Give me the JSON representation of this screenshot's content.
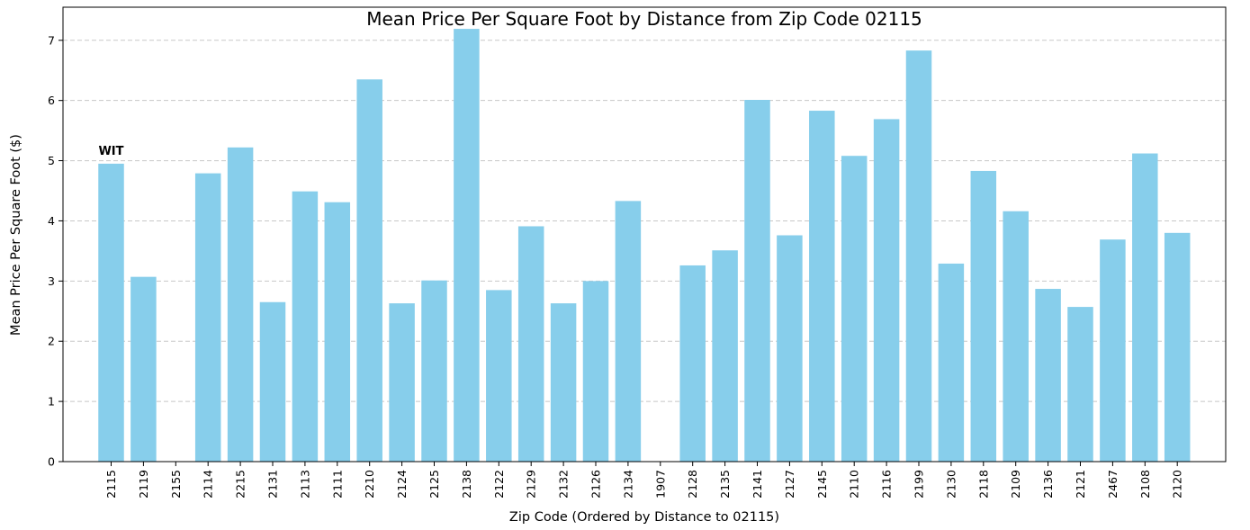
{
  "chart_data": {
    "type": "bar",
    "title": "Mean Price Per Square Foot by Distance from Zip Code 02115",
    "xlabel": "Zip Code (Ordered by Distance to 02115)",
    "ylabel": "Mean Price Per Square Foot ($)",
    "ylim": [
      0,
      7.55
    ],
    "yticks": [
      0,
      1,
      2,
      3,
      4,
      5,
      6,
      7
    ],
    "grid": "y-dashed",
    "bar_color": "#87CEEB",
    "categories": [
      "2115",
      "2119",
      "2155",
      "2114",
      "2215",
      "2131",
      "2113",
      "2111",
      "2210",
      "2124",
      "2125",
      "2138",
      "2122",
      "2129",
      "2132",
      "2126",
      "2134",
      "1907",
      "2128",
      "2135",
      "2141",
      "2127",
      "2145",
      "2110",
      "2116",
      "2199",
      "2130",
      "2118",
      "2109",
      "2136",
      "2121",
      "2467",
      "2108",
      "2120"
    ],
    "values": [
      4.95,
      3.07,
      0,
      4.79,
      5.22,
      2.65,
      4.49,
      4.31,
      6.35,
      2.63,
      3.01,
      7.19,
      2.85,
      3.91,
      2.63,
      3.0,
      4.33,
      0,
      3.26,
      3.51,
      6.01,
      3.76,
      5.83,
      5.08,
      5.69,
      6.83,
      3.29,
      4.83,
      4.16,
      2.87,
      2.57,
      3.69,
      5.12,
      3.8
    ],
    "annotations": [
      {
        "text": "WIT",
        "category": "2115"
      }
    ]
  }
}
